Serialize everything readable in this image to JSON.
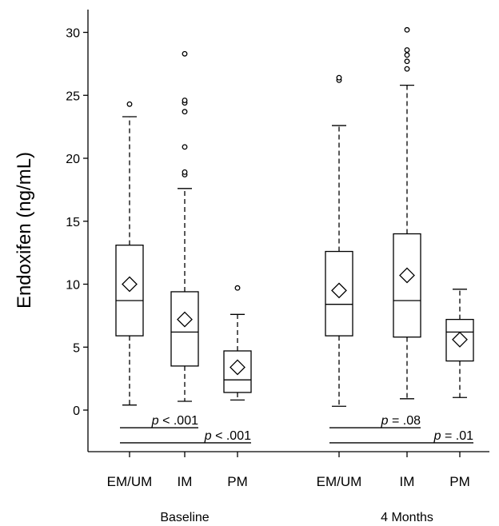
{
  "chart_data": {
    "type": "box",
    "ylabel": "Endoxifen (ng/mL)",
    "ylim": [
      -3.2,
      31.8
    ],
    "yticks": [
      0,
      5,
      10,
      15,
      20,
      25,
      30
    ],
    "groups": [
      {
        "label": "Baseline",
        "boxes": [
          {
            "category": "EM/UM",
            "whisker_low": 0.4,
            "q1": 5.9,
            "median": 8.7,
            "q3": 13.1,
            "whisker_high": 23.3,
            "mean": 10.0,
            "outliers": [
              24.3
            ]
          },
          {
            "category": "IM",
            "whisker_low": 0.7,
            "q1": 3.5,
            "median": 6.2,
            "q3": 9.4,
            "whisker_high": 17.6,
            "mean": 7.2,
            "outliers": [
              18.7,
              18.9,
              20.9,
              23.7,
              24.4,
              24.6,
              28.3
            ]
          },
          {
            "category": "PM",
            "whisker_low": 0.8,
            "q1": 1.4,
            "median": 2.4,
            "q3": 4.7,
            "whisker_high": 7.6,
            "mean": 3.4,
            "outliers": [
              9.7
            ]
          }
        ],
        "comparisons": [
          {
            "label": "p < .001",
            "from": "EM/UM",
            "to": "IM",
            "y": -1.4
          },
          {
            "label": "p < .001",
            "from": "EM/UM",
            "to": "PM",
            "y": -2.6
          }
        ]
      },
      {
        "label": "4 Months",
        "boxes": [
          {
            "category": "EM/UM",
            "whisker_low": 0.3,
            "q1": 5.9,
            "median": 8.4,
            "q3": 12.6,
            "whisker_high": 22.6,
            "mean": 9.5,
            "outliers": [
              26.2,
              26.4
            ]
          },
          {
            "category": "IM",
            "whisker_low": 0.9,
            "q1": 5.8,
            "median": 8.7,
            "q3": 14.0,
            "whisker_high": 25.8,
            "mean": 10.7,
            "outliers": [
              27.1,
              27.7,
              28.2,
              28.6,
              30.2
            ]
          },
          {
            "category": "PM",
            "whisker_low": 1.0,
            "q1": 3.9,
            "median": 6.2,
            "q3": 7.2,
            "whisker_high": 9.6,
            "mean": 5.6,
            "outliers": []
          }
        ],
        "comparisons": [
          {
            "label": "p = .08",
            "from": "EM/UM",
            "to": "IM",
            "y": -1.4
          },
          {
            "label": "p = .01",
            "from": "EM/UM",
            "to": "PM",
            "y": -2.6
          }
        ]
      }
    ]
  }
}
